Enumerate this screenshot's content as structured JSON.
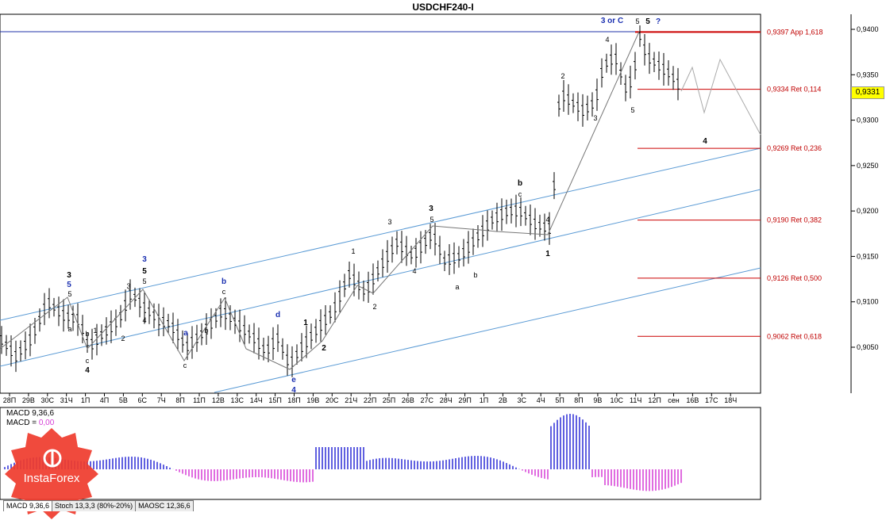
{
  "title": "USDCHF240-I",
  "current_price": "0,9331",
  "chart_data": {
    "type": "line",
    "price_axis": [
      "0,9400",
      "0,9350",
      "0,9300",
      "0,9250",
      "0,9200",
      "0,9150",
      "0,9100",
      "0,9050"
    ],
    "time_axis": [
      "28П",
      "29В",
      "30С",
      "31Ч",
      "1П",
      "4П",
      "5В",
      "6С",
      "7Ч",
      "8П",
      "11П",
      "12В",
      "13С",
      "14Ч",
      "15П",
      "18П",
      "19В",
      "20С",
      "21Ч",
      "22П",
      "25П",
      "26В",
      "27С",
      "28Ч",
      "29П",
      "1П",
      "2В",
      "3С",
      "4Ч",
      "5П",
      "8П",
      "9В",
      "10С",
      "11Ч",
      "12П",
      "сен",
      "16В",
      "17С",
      "18Ч"
    ],
    "fib_levels": [
      {
        "value": 0.9397,
        "label": "0,9397 App 1,618"
      },
      {
        "value": 0.9334,
        "label": "0,9334 Ret 0,114"
      },
      {
        "value": 0.9269,
        "label": "0,9269 Ret 0,236"
      },
      {
        "value": 0.919,
        "label": "0,9190 Ret 0,382"
      },
      {
        "value": 0.9126,
        "label": "0,9126 Ret 0,500"
      },
      {
        "value": 0.9062,
        "label": "0,9062 Ret 0,618"
      }
    ],
    "wave_labels": [
      "3",
      "5",
      "5",
      "3",
      "5",
      "3",
      "5",
      "4",
      "a",
      "b",
      "c",
      "4",
      "1",
      "2",
      "b",
      "c",
      "a",
      "b",
      "c",
      "d",
      "e",
      "4",
      "1",
      "2",
      "1",
      "2",
      "3",
      "3",
      "5",
      "4",
      "a",
      "b",
      "b",
      "c",
      "4",
      "1",
      "2",
      "3",
      "4",
      "5",
      "3 or C",
      "5",
      "5",
      "?",
      "4"
    ],
    "ylim": [
      0.9015,
      0.942
    ]
  },
  "indicator": {
    "macd_label": "MACD 9,36,6",
    "macd_eq": "MACD = ",
    "macd_value": "0,00"
  },
  "tabs": [
    "MACD 9,36,6",
    "Stoch 13,3,3 (80%-20%)",
    "MAOSC 12,36,6"
  ],
  "brand": "InstaForex",
  "colors": {
    "fib": "#cc0000",
    "channel": "#5b9bd5",
    "macd_pos": "#2b2bd6",
    "macd_neg": "#d63bd6",
    "wave_blue": "#1a2fb0"
  }
}
